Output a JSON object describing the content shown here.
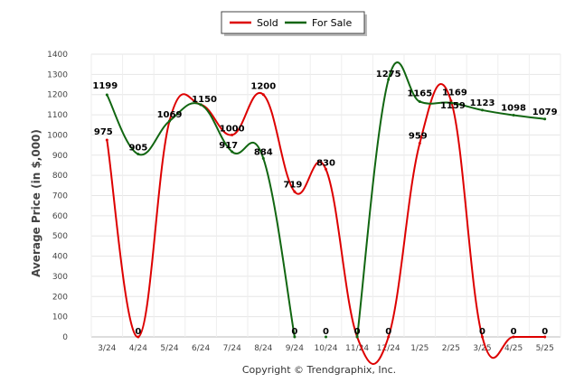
{
  "chart_data": {
    "type": "line",
    "title": "",
    "xlabel": "",
    "ylabel": "Average Price (in $,000)",
    "categories": [
      "3/24",
      "4/24",
      "5/24",
      "6/24",
      "7/24",
      "8/24",
      "9/24",
      "10/24",
      "11/24",
      "12/24",
      "1/25",
      "2/25",
      "3/25",
      "4/25",
      "5/25"
    ],
    "ylim": [
      0,
      1400
    ],
    "yticks": [
      0,
      100,
      200,
      300,
      400,
      500,
      600,
      700,
      800,
      900,
      1000,
      1100,
      1200,
      1300,
      1400
    ],
    "grid": true,
    "legend_position": "top-center",
    "series": [
      {
        "name": "Sold",
        "color": "#dd0000",
        "values": [
          975,
          0,
          1069,
          1150,
          1000,
          1200,
          719,
          830,
          0,
          0,
          959,
          1169,
          0,
          0,
          0
        ]
      },
      {
        "name": "For Sale",
        "color": "#116611",
        "values": [
          1199,
          905,
          1069,
          1150,
          917,
          884,
          0,
          0,
          0,
          1275,
          1165,
          1159,
          1123,
          1098,
          1079
        ]
      }
    ],
    "data_labels": [
      {
        "text": "975",
        "series": 0,
        "index": 0
      },
      {
        "text": "0",
        "series": 0,
        "index": 1
      },
      {
        "text": "1069",
        "series": 0,
        "index": 2
      },
      {
        "text": "1150",
        "series": 0,
        "index": 3
      },
      {
        "text": "1000",
        "series": 0,
        "index": 4
      },
      {
        "text": "1200",
        "series": 0,
        "index": 5
      },
      {
        "text": "719",
        "series": 0,
        "index": 6
      },
      {
        "text": "830",
        "series": 0,
        "index": 7
      },
      {
        "text": "0",
        "series": 0,
        "index": 8
      },
      {
        "text": "0",
        "series": 0,
        "index": 9
      },
      {
        "text": "959",
        "series": 0,
        "index": 10
      },
      {
        "text": "1169",
        "series": 0,
        "index": 11
      },
      {
        "text": "0",
        "series": 0,
        "index": 12
      },
      {
        "text": "0",
        "series": 0,
        "index": 13
      },
      {
        "text": "0",
        "series": 0,
        "index": 14
      },
      {
        "text": "1199",
        "series": 1,
        "index": 0
      },
      {
        "text": "905",
        "series": 1,
        "index": 1
      },
      {
        "text": "917",
        "series": 1,
        "index": 4
      },
      {
        "text": "884",
        "series": 1,
        "index": 5
      },
      {
        "text": "0",
        "series": 1,
        "index": 6
      },
      {
        "text": "0",
        "series": 1,
        "index": 7
      },
      {
        "text": "1275",
        "series": 1,
        "index": 9
      },
      {
        "text": "1165",
        "series": 1,
        "index": 10
      },
      {
        "text": "1159",
        "series": 1,
        "index": 11
      },
      {
        "text": "1123",
        "series": 1,
        "index": 12
      },
      {
        "text": "1098",
        "series": 1,
        "index": 13
      },
      {
        "text": "1079",
        "series": 1,
        "index": 14
      }
    ]
  },
  "footer": "Copyright © Trendgraphix, Inc."
}
